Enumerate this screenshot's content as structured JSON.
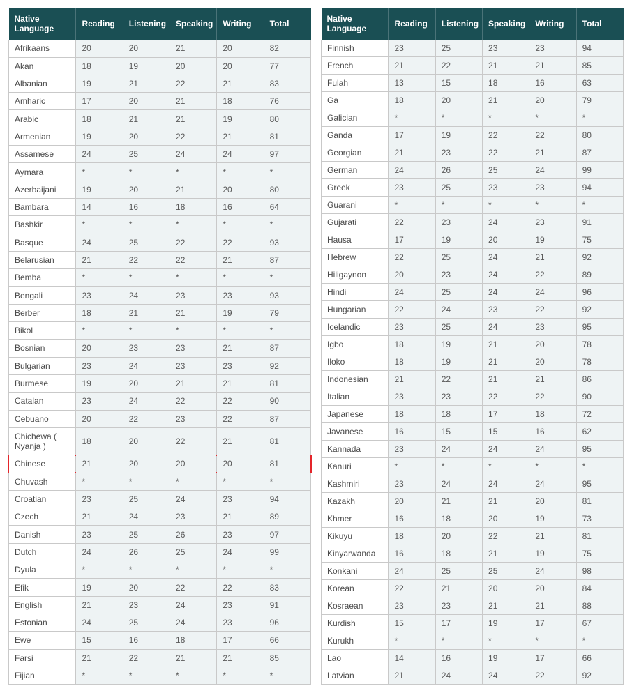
{
  "columns": [
    "Native Language",
    "Reading",
    "Listening",
    "Speaking",
    "Writing",
    "Total"
  ],
  "highlight_language": "Chinese",
  "highlight_color": "#e4252a",
  "header_bg": "#1a4f54",
  "header_fg": "#ffffff",
  "cell_bg": "#eef3f4",
  "first_col_bg": "#ffffff",
  "border_color": "#c9c9c9",
  "left_rows": [
    [
      "Afrikaans",
      "20",
      "20",
      "21",
      "20",
      "82"
    ],
    [
      "Akan",
      "18",
      "19",
      "20",
      "20",
      "77"
    ],
    [
      "Albanian",
      "19",
      "21",
      "22",
      "21",
      "83"
    ],
    [
      "Amharic",
      "17",
      "20",
      "21",
      "18",
      "76"
    ],
    [
      "Arabic",
      "18",
      "21",
      "21",
      "19",
      "80"
    ],
    [
      "Armenian",
      "19",
      "20",
      "22",
      "21",
      "81"
    ],
    [
      "Assamese",
      "24",
      "25",
      "24",
      "24",
      "97"
    ],
    [
      "Aymara",
      "*",
      "*",
      "*",
      "*",
      "*"
    ],
    [
      "Azerbaijani",
      "19",
      "20",
      "21",
      "20",
      "80"
    ],
    [
      "Bambara",
      "14",
      "16",
      "18",
      "16",
      "64"
    ],
    [
      "Bashkir",
      "*",
      "*",
      "*",
      "*",
      "*"
    ],
    [
      "Basque",
      "24",
      "25",
      "22",
      "22",
      "93"
    ],
    [
      "Belarusian",
      "21",
      "22",
      "22",
      "21",
      "87"
    ],
    [
      "Bemba",
      "*",
      "*",
      "*",
      "*",
      "*"
    ],
    [
      "Bengali",
      "23",
      "24",
      "23",
      "23",
      "93"
    ],
    [
      "Berber",
      "18",
      "21",
      "21",
      "19",
      "79"
    ],
    [
      "Bikol",
      "*",
      "*",
      "*",
      "*",
      "*"
    ],
    [
      "Bosnian",
      "20",
      "23",
      "23",
      "21",
      "87"
    ],
    [
      "Bulgarian",
      "23",
      "24",
      "23",
      "23",
      "92"
    ],
    [
      "Burmese",
      "19",
      "20",
      "21",
      "21",
      "81"
    ],
    [
      "Catalan",
      "23",
      "24",
      "22",
      "22",
      "90"
    ],
    [
      "Cebuano",
      "20",
      "22",
      "23",
      "22",
      "87"
    ],
    [
      "Chichewa ( Nyanja )",
      "18",
      "20",
      "22",
      "21",
      "81"
    ],
    [
      "Chinese",
      "21",
      "20",
      "20",
      "20",
      "81"
    ],
    [
      "Chuvash",
      "*",
      "*",
      "*",
      "*",
      "*"
    ],
    [
      "Croatian",
      "23",
      "25",
      "24",
      "23",
      "94"
    ],
    [
      "Czech",
      "21",
      "24",
      "23",
      "21",
      "89"
    ],
    [
      "Danish",
      "23",
      "25",
      "26",
      "23",
      "97"
    ],
    [
      "Dutch",
      "24",
      "26",
      "25",
      "24",
      "99"
    ],
    [
      "Dyula",
      "*",
      "*",
      "*",
      "*",
      "*"
    ],
    [
      "Efik",
      "19",
      "20",
      "22",
      "22",
      "83"
    ],
    [
      "English",
      "21",
      "23",
      "24",
      "23",
      "91"
    ],
    [
      "Estonian",
      "24",
      "25",
      "24",
      "23",
      "96"
    ],
    [
      "Ewe",
      "15",
      "16",
      "18",
      "17",
      "66"
    ],
    [
      "Farsi",
      "21",
      "22",
      "21",
      "21",
      "85"
    ],
    [
      "Fijian",
      "*",
      "*",
      "*",
      "*",
      "*"
    ]
  ],
  "right_rows": [
    [
      "Finnish",
      "23",
      "25",
      "23",
      "23",
      "94"
    ],
    [
      "French",
      "21",
      "22",
      "21",
      "21",
      "85"
    ],
    [
      "Fulah",
      "13",
      "15",
      "18",
      "16",
      "63"
    ],
    [
      "Ga",
      "18",
      "20",
      "21",
      "20",
      "79"
    ],
    [
      "Galician",
      "*",
      "*",
      "*",
      "*",
      "*"
    ],
    [
      "Ganda",
      "17",
      "19",
      "22",
      "22",
      "80"
    ],
    [
      "Georgian",
      "21",
      "23",
      "22",
      "21",
      "87"
    ],
    [
      "German",
      "24",
      "26",
      "25",
      "24",
      "99"
    ],
    [
      "Greek",
      "23",
      "25",
      "23",
      "23",
      "94"
    ],
    [
      "Guarani",
      "*",
      "*",
      "*",
      "*",
      "*"
    ],
    [
      "Gujarati",
      "22",
      "23",
      "24",
      "23",
      "91"
    ],
    [
      "Hausa",
      "17",
      "19",
      "20",
      "19",
      "75"
    ],
    [
      "Hebrew",
      "22",
      "25",
      "24",
      "21",
      "92"
    ],
    [
      "Hiligaynon",
      "20",
      "23",
      "24",
      "22",
      "89"
    ],
    [
      "Hindi",
      "24",
      "25",
      "24",
      "24",
      "96"
    ],
    [
      "Hungarian",
      "22",
      "24",
      "23",
      "22",
      "92"
    ],
    [
      "Icelandic",
      "23",
      "25",
      "24",
      "23",
      "95"
    ],
    [
      "Igbo",
      "18",
      "19",
      "21",
      "20",
      "78"
    ],
    [
      "Iloko",
      "18",
      "19",
      "21",
      "20",
      "78"
    ],
    [
      "Indonesian",
      "21",
      "22",
      "21",
      "21",
      "86"
    ],
    [
      "Italian",
      "23",
      "23",
      "22",
      "22",
      "90"
    ],
    [
      "Japanese",
      "18",
      "18",
      "17",
      "18",
      "72"
    ],
    [
      "Javanese",
      "16",
      "15",
      "15",
      "16",
      "62"
    ],
    [
      "Kannada",
      "23",
      "24",
      "24",
      "24",
      "95"
    ],
    [
      "Kanuri",
      "*",
      "*",
      "*",
      "*",
      "*"
    ],
    [
      "Kashmiri",
      "23",
      "24",
      "24",
      "24",
      "95"
    ],
    [
      "Kazakh",
      "20",
      "21",
      "21",
      "20",
      "81"
    ],
    [
      "Khmer",
      "16",
      "18",
      "20",
      "19",
      "73"
    ],
    [
      "Kikuyu",
      "18",
      "20",
      "22",
      "21",
      "81"
    ],
    [
      "Kinyarwanda",
      "16",
      "18",
      "21",
      "19",
      "75"
    ],
    [
      "Konkani",
      "24",
      "25",
      "25",
      "24",
      "98"
    ],
    [
      "Korean",
      "22",
      "21",
      "20",
      "20",
      "84"
    ],
    [
      "Kosraean",
      "23",
      "23",
      "21",
      "21",
      "88"
    ],
    [
      "Kurdish",
      "15",
      "17",
      "19",
      "17",
      "67"
    ],
    [
      "Kurukh",
      "*",
      "*",
      "*",
      "*",
      "*"
    ],
    [
      "Lao",
      "14",
      "16",
      "19",
      "17",
      "66"
    ],
    [
      "Latvian",
      "21",
      "24",
      "24",
      "22",
      "92"
    ]
  ]
}
